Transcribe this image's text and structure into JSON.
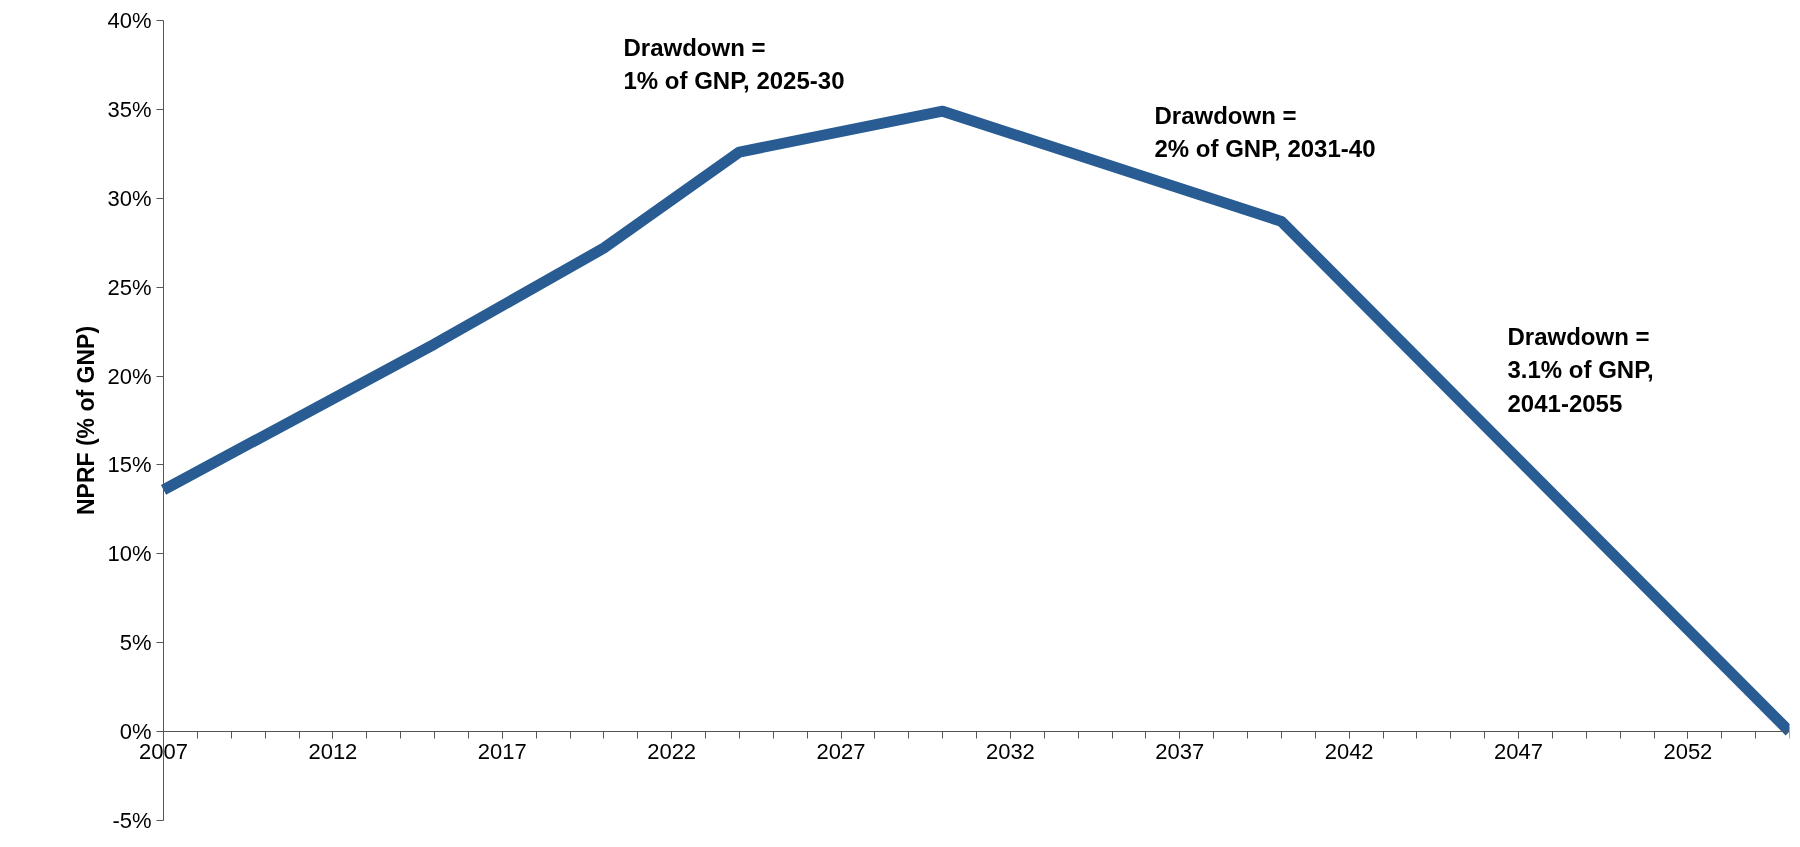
{
  "chart_data": {
    "type": "line",
    "ylabel": "NPRF (% of GNP)",
    "x": [
      2007,
      2015,
      2020,
      2024,
      2030,
      2040,
      2055
    ],
    "series": [
      {
        "color": "#285c92",
        "values": [
          13.6,
          21.8,
          27.2,
          32.6,
          34.9,
          28.7,
          0
        ]
      }
    ],
    "xlim": [
      2007,
      2055
    ],
    "xticks": [
      2007,
      2012,
      2017,
      2022,
      2027,
      2032,
      2037,
      2042,
      2047,
      2052
    ],
    "ylim": [
      -5,
      40
    ],
    "yticks": [
      {
        "value": -5,
        "label": "-5%"
      },
      {
        "value": 0,
        "label": "0%"
      },
      {
        "value": 5,
        "label": "5%"
      },
      {
        "value": 10,
        "label": "10%"
      },
      {
        "value": 15,
        "label": "15%"
      },
      {
        "value": 20,
        "label": "20%"
      },
      {
        "value": 25,
        "label": "25%"
      },
      {
        "value": 30,
        "label": "30%"
      },
      {
        "value": 35,
        "label": "35%"
      },
      {
        "value": 40,
        "label": "40%"
      }
    ],
    "annotations": [
      "Drawdown =\n1% of GNP, 2025-30",
      "Drawdown =\n2% of GNP, 2031-40",
      "Drawdown =\n3.1% of GNP,\n2041-2055"
    ],
    "grid": false,
    "marker": "none",
    "line_style": "solid"
  }
}
